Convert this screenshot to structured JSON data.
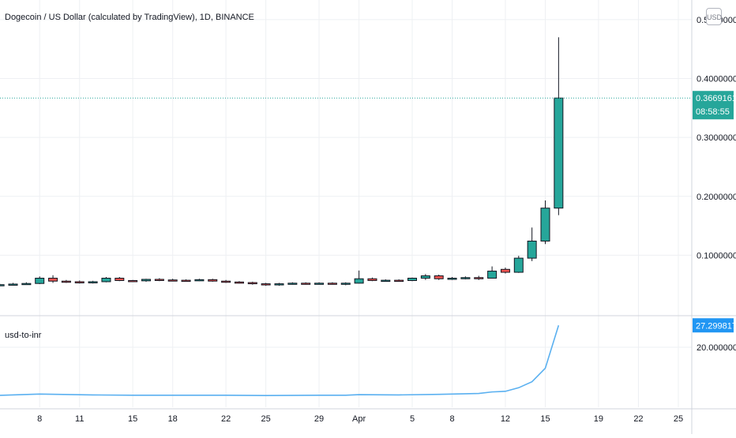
{
  "header": {
    "symbol_title": "Dogecoin / US Dollar (calculated by TradingView), 1D, BINANCE",
    "currency_label": "USD"
  },
  "indicator": {
    "name": "usd-to-inr"
  },
  "colors": {
    "up": "#26a69a",
    "down": "#ef5350",
    "price_line": "#26a69a",
    "indicator_line": "#5ab0f0",
    "indicator_badge": "#2196f3",
    "grid": "#eef0f3",
    "text": "#131722",
    "axis_text": "#131722"
  },
  "chart_data": [
    {
      "type": "candlestick",
      "title": "Dogecoin / US Dollar (calculated by TradingView), 1D, BINANCE",
      "ylim": [
        0.0,
        0.52
      ],
      "y_ticks": [
        "0.10000000",
        "0.20000000",
        "0.30000000",
        "0.40000000",
        "0.50000000"
      ],
      "y_tick_values": [
        0.1,
        0.2,
        0.3,
        0.4,
        0.5
      ],
      "x_tick_labels": [
        "8",
        "11",
        "15",
        "18",
        "22",
        "25",
        "29",
        "Apr",
        "5",
        "8",
        "12",
        "15",
        "19",
        "22",
        "25"
      ],
      "x_tick_days": [
        8,
        11,
        15,
        18,
        22,
        25,
        29,
        32,
        36,
        39,
        43,
        46,
        50,
        53,
        56
      ],
      "last_price_label": "0.36691618",
      "countdown_label": "08:58:55",
      "last_price": 0.36691618,
      "candles": [
        {
          "day": 4,
          "open": 0.047,
          "high": 0.051,
          "low": 0.046,
          "close": 0.049
        },
        {
          "day": 5,
          "open": 0.049,
          "high": 0.052,
          "low": 0.048,
          "close": 0.05
        },
        {
          "day": 6,
          "open": 0.05,
          "high": 0.053,
          "low": 0.049,
          "close": 0.051
        },
        {
          "day": 7,
          "open": 0.051,
          "high": 0.054,
          "low": 0.05,
          "close": 0.052
        },
        {
          "day": 8,
          "open": 0.052,
          "high": 0.064,
          "low": 0.051,
          "close": 0.061
        },
        {
          "day": 9,
          "open": 0.061,
          "high": 0.066,
          "low": 0.053,
          "close": 0.056
        },
        {
          "day": 10,
          "open": 0.056,
          "high": 0.058,
          "low": 0.053,
          "close": 0.055
        },
        {
          "day": 11,
          "open": 0.055,
          "high": 0.057,
          "low": 0.052,
          "close": 0.0545
        },
        {
          "day": 12,
          "open": 0.0545,
          "high": 0.0565,
          "low": 0.052,
          "close": 0.055
        },
        {
          "day": 13,
          "open": 0.055,
          "high": 0.063,
          "low": 0.054,
          "close": 0.061
        },
        {
          "day": 14,
          "open": 0.061,
          "high": 0.063,
          "low": 0.056,
          "close": 0.057
        },
        {
          "day": 15,
          "open": 0.057,
          "high": 0.058,
          "low": 0.055,
          "close": 0.0565
        },
        {
          "day": 16,
          "open": 0.0565,
          "high": 0.06,
          "low": 0.055,
          "close": 0.059
        },
        {
          "day": 17,
          "open": 0.059,
          "high": 0.061,
          "low": 0.056,
          "close": 0.058
        },
        {
          "day": 18,
          "open": 0.058,
          "high": 0.06,
          "low": 0.056,
          "close": 0.0575
        },
        {
          "day": 19,
          "open": 0.0575,
          "high": 0.059,
          "low": 0.055,
          "close": 0.057
        },
        {
          "day": 20,
          "open": 0.057,
          "high": 0.06,
          "low": 0.056,
          "close": 0.0585
        },
        {
          "day": 21,
          "open": 0.0585,
          "high": 0.06,
          "low": 0.055,
          "close": 0.056
        },
        {
          "day": 22,
          "open": 0.056,
          "high": 0.058,
          "low": 0.053,
          "close": 0.0545
        },
        {
          "day": 23,
          "open": 0.0545,
          "high": 0.056,
          "low": 0.052,
          "close": 0.0535
        },
        {
          "day": 24,
          "open": 0.0535,
          "high": 0.055,
          "low": 0.05,
          "close": 0.0515
        },
        {
          "day": 25,
          "open": 0.0515,
          "high": 0.053,
          "low": 0.048,
          "close": 0.0495
        },
        {
          "day": 26,
          "open": 0.0495,
          "high": 0.053,
          "low": 0.048,
          "close": 0.0515
        },
        {
          "day": 27,
          "open": 0.0515,
          "high": 0.054,
          "low": 0.05,
          "close": 0.0525
        },
        {
          "day": 28,
          "open": 0.0525,
          "high": 0.054,
          "low": 0.05,
          "close": 0.0515
        },
        {
          "day": 29,
          "open": 0.0515,
          "high": 0.054,
          "low": 0.05,
          "close": 0.0525
        },
        {
          "day": 30,
          "open": 0.0525,
          "high": 0.054,
          "low": 0.05,
          "close": 0.0515
        },
        {
          "day": 31,
          "open": 0.0515,
          "high": 0.054,
          "low": 0.049,
          "close": 0.0525
        },
        {
          "day": 32,
          "open": 0.0525,
          "high": 0.074,
          "low": 0.052,
          "close": 0.06
        },
        {
          "day": 33,
          "open": 0.06,
          "high": 0.062,
          "low": 0.056,
          "close": 0.057
        },
        {
          "day": 34,
          "open": 0.057,
          "high": 0.059,
          "low": 0.055,
          "close": 0.0575
        },
        {
          "day": 35,
          "open": 0.0575,
          "high": 0.059,
          "low": 0.055,
          "close": 0.057
        },
        {
          "day": 36,
          "open": 0.057,
          "high": 0.062,
          "low": 0.056,
          "close": 0.061
        },
        {
          "day": 37,
          "open": 0.061,
          "high": 0.068,
          "low": 0.058,
          "close": 0.065
        },
        {
          "day": 38,
          "open": 0.065,
          "high": 0.067,
          "low": 0.058,
          "close": 0.06
        },
        {
          "day": 39,
          "open": 0.06,
          "high": 0.063,
          "low": 0.058,
          "close": 0.061
        },
        {
          "day": 40,
          "open": 0.061,
          "high": 0.064,
          "low": 0.059,
          "close": 0.062
        },
        {
          "day": 41,
          "open": 0.062,
          "high": 0.065,
          "low": 0.058,
          "close": 0.061
        },
        {
          "day": 42,
          "open": 0.061,
          "high": 0.081,
          "low": 0.061,
          "close": 0.073
        },
        {
          "day": 43,
          "open": 0.076,
          "high": 0.079,
          "low": 0.069,
          "close": 0.071
        },
        {
          "day": 44,
          "open": 0.071,
          "high": 0.099,
          "low": 0.07,
          "close": 0.095
        },
        {
          "day": 45,
          "open": 0.095,
          "high": 0.147,
          "low": 0.09,
          "close": 0.124
        },
        {
          "day": 46,
          "open": 0.124,
          "high": 0.193,
          "low": 0.119,
          "close": 0.18
        },
        {
          "day": 47,
          "open": 0.18,
          "high": 0.47,
          "low": 0.168,
          "close": 0.36691618
        }
      ]
    },
    {
      "type": "line",
      "name": "usd-to-inr",
      "ylim": [
        0.0,
        30.0
      ],
      "y_ticks": [
        "20.00000000"
      ],
      "y_tick_values": [
        20.0
      ],
      "last_value_label": "27.29981781",
      "x": [
        4,
        8,
        12,
        15,
        18,
        22,
        25,
        29,
        31,
        32,
        35,
        38,
        41,
        42,
        43,
        44,
        45,
        46,
        47
      ],
      "values": [
        3.8,
        4.4,
        4.1,
        4.0,
        4.0,
        4.0,
        3.9,
        4.0,
        4.0,
        4.2,
        4.1,
        4.3,
        4.6,
        5.1,
        5.3,
        6.5,
        8.5,
        13.0,
        27.3
      ]
    }
  ]
}
